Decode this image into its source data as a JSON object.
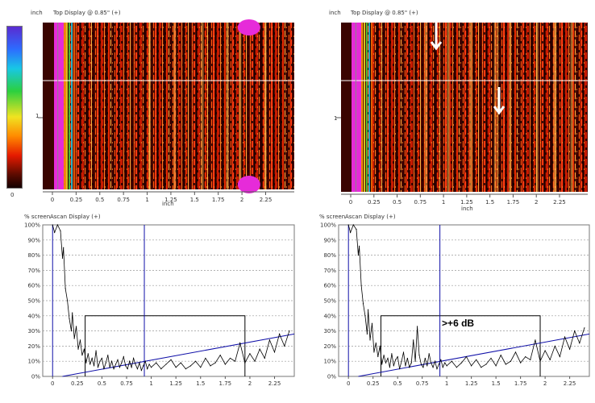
{
  "colorbar": {
    "bottom_label": "0"
  },
  "cscans": [
    {
      "unit_label": "inch",
      "title": "Top Display @ 0.85\" (+)",
      "y_tick_label": "1",
      "x_axis_label": "inch",
      "x_ticks": [
        "0",
        "0.25",
        "0.5",
        "0.75",
        "1",
        "1.25",
        "1.5",
        "1.75",
        "2",
        "2.25"
      ]
    },
    {
      "unit_label": "inch",
      "title": "Top Display @ 0.85\" (+)",
      "y_tick_label": "1",
      "x_axis_label": "inch",
      "x_ticks": [
        "0",
        "0.25",
        "0.5",
        "0.75",
        "1",
        "1.25",
        "1.5",
        "1.75",
        "2",
        "2.25"
      ]
    }
  ],
  "chart_data": [
    {
      "type": "line",
      "ylabel": "% screen",
      "title": "Ascan Display (+)",
      "ylim": [
        0,
        100
      ],
      "y_ticks": [
        "100%",
        "90%",
        "80%",
        "70%",
        "60%",
        "50%",
        "40%",
        "30%",
        "20%",
        "10%",
        "0%"
      ],
      "x_ticks": [
        "0",
        "0.25",
        "0.5",
        "0.75",
        "1",
        "1.25",
        "1.5",
        "1.75",
        "2",
        "2.25"
      ],
      "xlim": [
        -0.1,
        2.45
      ],
      "grid": "horizontal dashed",
      "series": [
        {
          "x": [
            0.0,
            0.02,
            0.05,
            0.08,
            0.1,
            0.11,
            0.13,
            0.15,
            0.17,
            0.19,
            0.2,
            0.22,
            0.24,
            0.26,
            0.28,
            0.3,
            0.32,
            0.34,
            0.36,
            0.38,
            0.4,
            0.42,
            0.44,
            0.46,
            0.48,
            0.5,
            0.52,
            0.54,
            0.56,
            0.58,
            0.6,
            0.62,
            0.64,
            0.66,
            0.68,
            0.7,
            0.72,
            0.74,
            0.76,
            0.78,
            0.8,
            0.82,
            0.84,
            0.86,
            0.88,
            0.9,
            0.92,
            0.94,
            0.96,
            0.98,
            1.0,
            1.05,
            1.1,
            1.15,
            1.2,
            1.25,
            1.3,
            1.35,
            1.4,
            1.45,
            1.5,
            1.55,
            1.6,
            1.65,
            1.7,
            1.75,
            1.8,
            1.85,
            1.9,
            1.95,
            2.0,
            2.05,
            2.1,
            2.15,
            2.2,
            2.25,
            2.3,
            2.35,
            2.4
          ],
          "y": [
            100,
            95,
            100,
            96,
            78,
            85,
            58,
            50,
            38,
            30,
            42,
            25,
            33,
            18,
            24,
            14,
            18,
            9,
            15,
            8,
            12,
            7,
            17,
            6,
            10,
            12,
            5,
            9,
            14,
            6,
            10,
            5,
            8,
            11,
            6,
            9,
            13,
            7,
            5,
            10,
            6,
            12,
            8,
            5,
            9,
            4,
            7,
            10,
            5,
            8,
            6,
            9,
            5,
            8,
            11,
            6,
            9,
            5,
            7,
            10,
            6,
            12,
            7,
            9,
            14,
            8,
            12,
            10,
            22,
            9,
            15,
            10,
            18,
            12,
            24,
            16,
            28,
            20,
            30
          ]
        }
      ],
      "lines": [
        {
          "type": "gate_box",
          "x": [
            0.33,
            1.95
          ],
          "y_top": 40
        },
        {
          "type": "cursor",
          "x": 0.93
        },
        {
          "type": "dac_curve",
          "x": [
            0.1,
            2.45
          ],
          "y": [
            0,
            28
          ]
        }
      ],
      "annotations": []
    },
    {
      "type": "line",
      "ylabel": "% screen",
      "title": "Ascan Display (+)",
      "ylim": [
        0,
        100
      ],
      "y_ticks": [
        "100%",
        "90%",
        "80%",
        "70%",
        "60%",
        "50%",
        "40%",
        "30%",
        "20%",
        "10%",
        "0%"
      ],
      "x_ticks": [
        "0",
        "0.25",
        "0.5",
        "0.75",
        "1",
        "1.25",
        "1.5",
        "1.75",
        "2",
        "2.25"
      ],
      "xlim": [
        -0.1,
        2.45
      ],
      "grid": "horizontal dashed",
      "series": [
        {
          "x": [
            0.0,
            0.02,
            0.05,
            0.08,
            0.1,
            0.11,
            0.13,
            0.15,
            0.17,
            0.19,
            0.2,
            0.22,
            0.24,
            0.26,
            0.28,
            0.3,
            0.32,
            0.34,
            0.36,
            0.38,
            0.4,
            0.42,
            0.44,
            0.46,
            0.48,
            0.5,
            0.52,
            0.54,
            0.56,
            0.58,
            0.6,
            0.62,
            0.64,
            0.66,
            0.68,
            0.7,
            0.72,
            0.74,
            0.76,
            0.78,
            0.8,
            0.82,
            0.84,
            0.86,
            0.88,
            0.9,
            0.92,
            0.94,
            0.96,
            0.98,
            1.0,
            1.05,
            1.1,
            1.15,
            1.2,
            1.25,
            1.3,
            1.35,
            1.4,
            1.45,
            1.5,
            1.55,
            1.6,
            1.65,
            1.7,
            1.75,
            1.8,
            1.85,
            1.9,
            1.95,
            2.0,
            2.05,
            2.1,
            2.15,
            2.2,
            2.25,
            2.3,
            2.35,
            2.4
          ],
          "y": [
            100,
            95,
            100,
            97,
            80,
            86,
            60,
            48,
            40,
            28,
            44,
            24,
            35,
            16,
            22,
            13,
            20,
            8,
            14,
            9,
            12,
            6,
            15,
            7,
            11,
            13,
            5,
            10,
            16,
            7,
            12,
            6,
            9,
            24,
            10,
            33,
            14,
            8,
            6,
            12,
            7,
            15,
            9,
            6,
            10,
            5,
            8,
            11,
            6,
            9,
            7,
            10,
            6,
            9,
            13,
            7,
            11,
            6,
            8,
            12,
            7,
            14,
            8,
            10,
            16,
            9,
            13,
            11,
            24,
            10,
            17,
            11,
            20,
            13,
            26,
            18,
            30,
            22,
            32
          ]
        }
      ],
      "lines": [
        {
          "type": "gate_box",
          "x": [
            0.33,
            1.95
          ],
          "y_top": 40
        },
        {
          "type": "cursor",
          "x": 0.93
        },
        {
          "type": "dac_curve",
          "x": [
            0.1,
            2.45
          ],
          "y": [
            0,
            28
          ]
        }
      ],
      "annotations": [
        {
          "text": ">+6 dB",
          "x": 0.95,
          "y": 33
        }
      ]
    }
  ],
  "colors": {
    "bg": "#000000",
    "red": "#ff2a00",
    "magenta": "#e62bd9",
    "plot_line": "#000000",
    "gate": "#000000",
    "cursor": "#1010a8",
    "grid": "#9a9a9a"
  }
}
